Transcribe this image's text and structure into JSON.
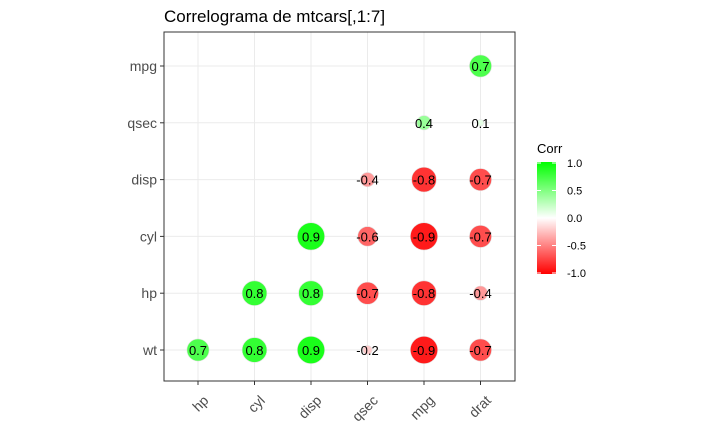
{
  "chart_data": {
    "type": "heatmap",
    "title": "Correlograma de mtcars[,1:7]",
    "x_categories": [
      "hp",
      "cyl",
      "disp",
      "qsec",
      "mpg",
      "drat"
    ],
    "y_categories": [
      "wt",
      "hp",
      "cyl",
      "disp",
      "qsec",
      "mpg"
    ],
    "cells": [
      {
        "x": "hp",
        "y": "wt",
        "value": 0.7,
        "label": "0.7"
      },
      {
        "x": "cyl",
        "y": "wt",
        "value": 0.8,
        "label": "0.8"
      },
      {
        "x": "disp",
        "y": "wt",
        "value": 0.9,
        "label": "0.9"
      },
      {
        "x": "qsec",
        "y": "wt",
        "value": -0.2,
        "label": "-0.2"
      },
      {
        "x": "mpg",
        "y": "wt",
        "value": -0.9,
        "label": "-0.9"
      },
      {
        "x": "drat",
        "y": "wt",
        "value": -0.7,
        "label": "-0.7"
      },
      {
        "x": "cyl",
        "y": "hp",
        "value": 0.8,
        "label": "0.8"
      },
      {
        "x": "disp",
        "y": "hp",
        "value": 0.8,
        "label": "0.8"
      },
      {
        "x": "qsec",
        "y": "hp",
        "value": -0.7,
        "label": "-0.7"
      },
      {
        "x": "mpg",
        "y": "hp",
        "value": -0.8,
        "label": "-0.8"
      },
      {
        "x": "drat",
        "y": "hp",
        "value": -0.4,
        "label": "-0.4"
      },
      {
        "x": "disp",
        "y": "cyl",
        "value": 0.9,
        "label": "0.9"
      },
      {
        "x": "qsec",
        "y": "cyl",
        "value": -0.6,
        "label": "-0.6"
      },
      {
        "x": "mpg",
        "y": "cyl",
        "value": -0.9,
        "label": "-0.9"
      },
      {
        "x": "drat",
        "y": "cyl",
        "value": -0.7,
        "label": "-0.7"
      },
      {
        "x": "qsec",
        "y": "disp",
        "value": -0.4,
        "label": "-0.4"
      },
      {
        "x": "mpg",
        "y": "disp",
        "value": -0.8,
        "label": "-0.8"
      },
      {
        "x": "drat",
        "y": "disp",
        "value": -0.7,
        "label": "-0.7"
      },
      {
        "x": "mpg",
        "y": "qsec",
        "value": 0.4,
        "label": "0.4"
      },
      {
        "x": "drat",
        "y": "qsec",
        "value": 0.1,
        "label": "0.1"
      },
      {
        "x": "drat",
        "y": "mpg",
        "value": 0.7,
        "label": "0.7"
      }
    ],
    "legend": {
      "title": "Corr",
      "ticks": [
        "1.0",
        "0.5",
        "0.0",
        "-0.5",
        "-1.0"
      ],
      "tick_values": [
        1.0,
        0.5,
        0.0,
        -0.5,
        -1.0
      ],
      "range": [
        -1,
        1
      ],
      "placement": "right"
    },
    "colors": {
      "low": "#ff0000",
      "mid": "#ffffff",
      "high": "#00ff00",
      "grid": "#ebebeb",
      "panel_border": "#333333"
    },
    "grid": true,
    "marker": "circle"
  }
}
